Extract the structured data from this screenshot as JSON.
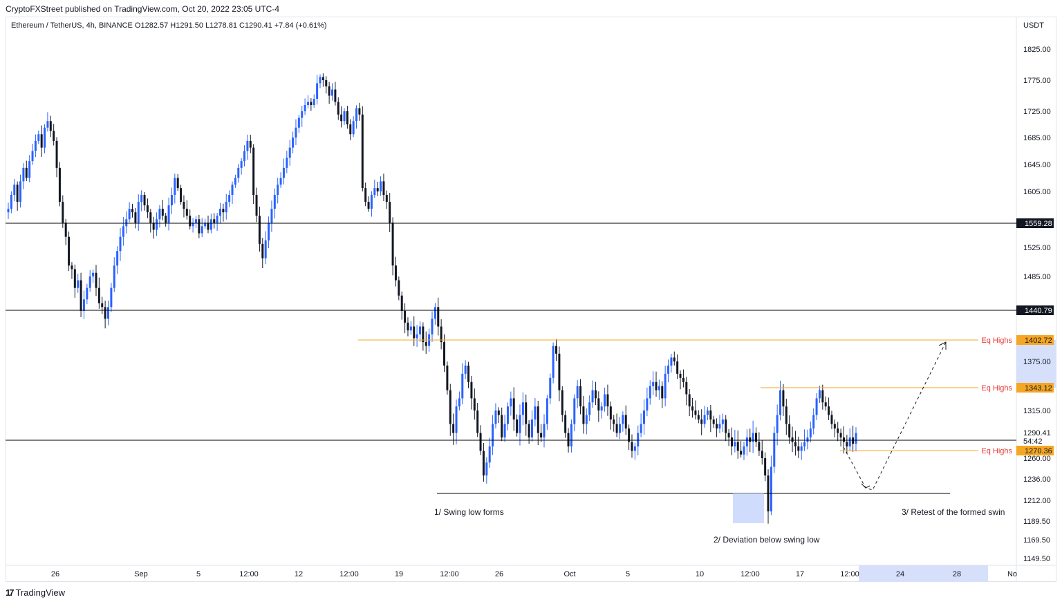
{
  "header": {
    "published": "CryptoFXStreet published on TradingView.com, Oct 20, 2022 23:05 UTC-4",
    "symbol_line": "Ethereum / TetherUS, 4h, BINANCE  O1282.57  H1291.50  L1278.81  C1290.41  +7.84 (+0.61%)"
  },
  "brand": {
    "name": "TradingView"
  },
  "chart_data": {
    "type": "candlestick",
    "title": "",
    "currency_label": "USDT",
    "y_ticks": [
      "1825.00",
      "1775.00",
      "1725.00",
      "1685.00",
      "1645.00",
      "1605.00",
      "1525.00",
      "1485.00",
      "1375.00",
      "1315.00",
      "1260.00",
      "1236.00",
      "1212.00",
      "1189.50",
      "1169.50",
      "1149.50"
    ],
    "x_ticks": [
      "26",
      "Sep",
      "5",
      "12:00",
      "12",
      "12:00",
      "19",
      "12:00",
      "26",
      "Oct",
      "5",
      "10",
      "12:00",
      "17",
      "12:00",
      "24",
      "28",
      "No"
    ],
    "last_price": "1290.41",
    "countdown": "54:42",
    "levels": [
      {
        "value": 1559.28,
        "label": "1559.28",
        "kind": "horizontal",
        "color": "#000000"
      },
      {
        "value": 1440.79,
        "label": "1440.79",
        "kind": "horizontal",
        "color": "#000000"
      },
      {
        "value": 1402.72,
        "label": "1402.72",
        "kind": "equal-highs",
        "note": "Eq Highs",
        "color": "#f5a623"
      },
      {
        "value": 1343.12,
        "label": "1343.12",
        "kind": "equal-highs",
        "note": "Eq Highs",
        "color": "#f5a623"
      },
      {
        "value": 1270.36,
        "label": "1270.36",
        "kind": "equal-highs",
        "note": "Eq Highs",
        "color": "#f5a623"
      }
    ],
    "annotations": [
      "1/ Swing low forms",
      "2/ Deviation below swing low",
      "3/ Retest of the formed swin"
    ],
    "colors": {
      "up": "#2962ff",
      "down": "#131722",
      "accent": "#f5a623",
      "eq_label": "#e53935"
    },
    "series": [
      {
        "name": "",
        "close": [
          1580,
          1600,
          1615,
          1590,
          1620,
          1640,
          1625,
          1650,
          1665,
          1680,
          1690,
          1670,
          1700,
          1710,
          1695,
          1680,
          1640,
          1590,
          1560,
          1540,
          1500,
          1495,
          1470,
          1480,
          1440,
          1455,
          1470,
          1485,
          1490,
          1470,
          1450,
          1445,
          1430,
          1445,
          1470,
          1500,
          1520,
          1540,
          1555,
          1565,
          1580,
          1575,
          1560,
          1590,
          1600,
          1585,
          1575,
          1560,
          1550,
          1565,
          1580,
          1570,
          1560,
          1585,
          1600,
          1625,
          1610,
          1590,
          1580,
          1570,
          1555,
          1560,
          1565,
          1545,
          1555,
          1560,
          1550,
          1565,
          1560,
          1570,
          1580,
          1575,
          1590,
          1600,
          1615,
          1625,
          1640,
          1650,
          1665,
          1680,
          1670,
          1600,
          1570,
          1530,
          1510,
          1535,
          1560,
          1580,
          1600,
          1615,
          1625,
          1640,
          1655,
          1670,
          1685,
          1700,
          1715,
          1725,
          1735,
          1740,
          1735,
          1745,
          1770,
          1780,
          1775,
          1765,
          1750,
          1760,
          1740,
          1720,
          1710,
          1725,
          1705,
          1690,
          1710,
          1730,
          1720,
          1610,
          1590,
          1580,
          1600,
          1610,
          1605,
          1620,
          1600,
          1590,
          1560,
          1500,
          1480,
          1460,
          1440,
          1425,
          1415,
          1420,
          1405,
          1410,
          1420,
          1400,
          1395,
          1410,
          1430,
          1445,
          1420,
          1400,
          1370,
          1340,
          1300,
          1290,
          1320,
          1330,
          1360,
          1370,
          1350,
          1330,
          1315,
          1290,
          1270,
          1240,
          1255,
          1275,
          1300,
          1315,
          1310,
          1285,
          1300,
          1320,
          1330,
          1305,
          1290,
          1310,
          1325,
          1300,
          1285,
          1305,
          1320,
          1290,
          1285,
          1300,
          1330,
          1355,
          1395,
          1385,
          1340,
          1310,
          1290,
          1275,
          1300,
          1330,
          1345,
          1320,
          1300,
          1310,
          1325,
          1340,
          1330,
          1315,
          1320,
          1335,
          1320,
          1305,
          1300,
          1290,
          1300,
          1310,
          1295,
          1280,
          1270,
          1275,
          1290,
          1300,
          1315,
          1330,
          1345,
          1350,
          1340,
          1345,
          1330,
          1360,
          1370,
          1380,
          1375,
          1360,
          1355,
          1350,
          1335,
          1320,
          1315,
          1310,
          1305,
          1300,
          1310,
          1315,
          1305,
          1300,
          1295,
          1300,
          1305,
          1290,
          1285,
          1275,
          1280,
          1270,
          1265,
          1275,
          1285,
          1280,
          1290,
          1280,
          1270,
          1260,
          1240,
          1200,
          1250,
          1290,
          1310,
          1340,
          1320,
          1300,
          1285,
          1280,
          1275,
          1270,
          1275,
          1280,
          1285,
          1295,
          1310,
          1330,
          1340,
          1325,
          1320,
          1310,
          1300,
          1295,
          1290,
          1285,
          1280,
          1275,
          1285,
          1278,
          1290
        ]
      }
    ]
  }
}
